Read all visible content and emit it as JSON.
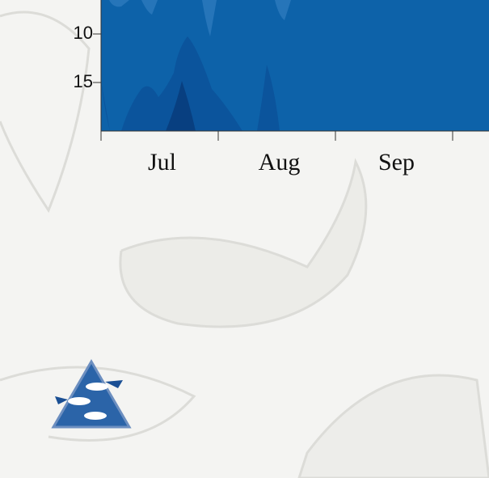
{
  "chart_data": {
    "type": "contour",
    "categories": [
      "Jul",
      "Aug",
      "Sep"
    ],
    "ylim": [
      20,
      6.5
    ],
    "yticks": [
      10,
      15
    ]
  }
}
